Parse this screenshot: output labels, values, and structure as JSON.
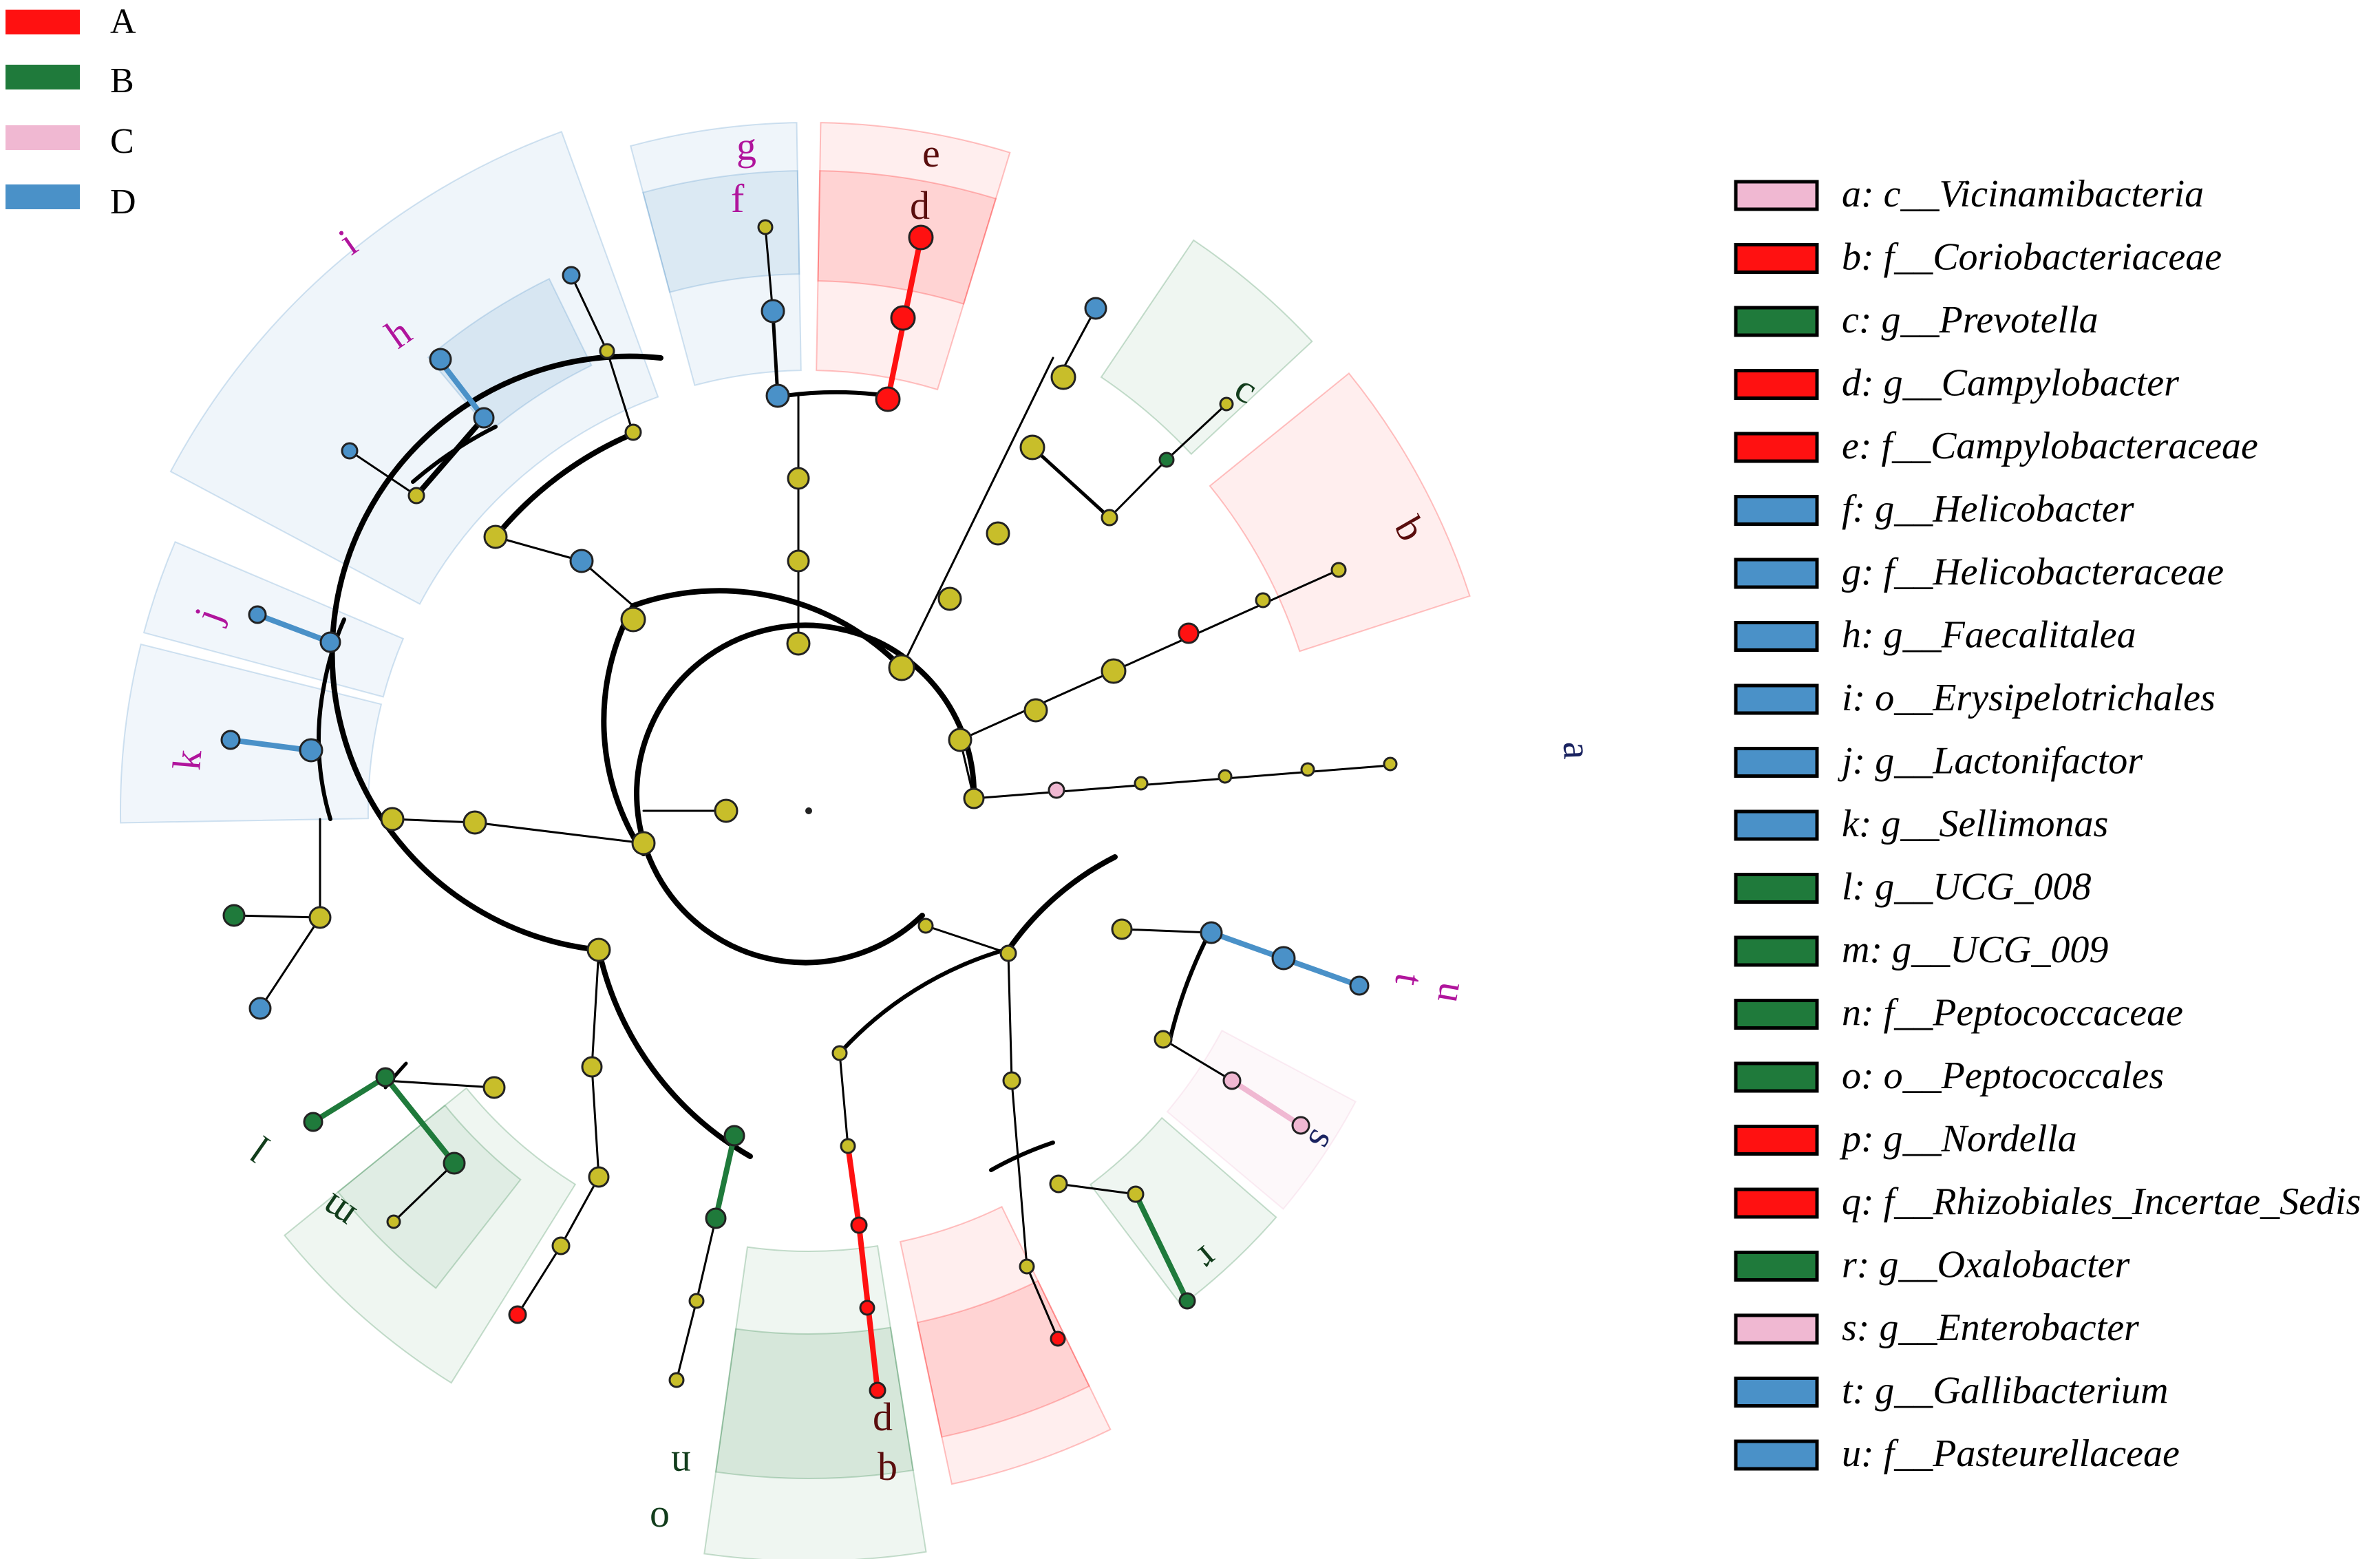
{
  "colors": {
    "A": "#ff1111",
    "B": "#1f7a3b",
    "C": "#f0b8d2",
    "D": "#4a91c8",
    "node_default": "#c8be2a",
    "label_purple": "#b0149c",
    "label_darkred": "#5a0d0d",
    "label_darkgreen": "#123d1c",
    "label_navy": "#1a2360"
  },
  "group_legend": [
    {
      "key": "A",
      "label": "A"
    },
    {
      "key": "B",
      "label": "B"
    },
    {
      "key": "C",
      "label": "C"
    },
    {
      "key": "D",
      "label": "D"
    }
  ],
  "taxa_legend": [
    {
      "id": "a",
      "text": "a: c__Vicinamibacteria",
      "group": "C"
    },
    {
      "id": "b",
      "text": "b: f__Coriobacteriaceae",
      "group": "A"
    },
    {
      "id": "c",
      "text": "c: g__Prevotella",
      "group": "B"
    },
    {
      "id": "d",
      "text": "d: g__Campylobacter",
      "group": "A"
    },
    {
      "id": "e",
      "text": "e: f__Campylobacteraceae",
      "group": "A"
    },
    {
      "id": "f",
      "text": "f: g__Helicobacter",
      "group": "D"
    },
    {
      "id": "g",
      "text": "g: f__Helicobacteraceae",
      "group": "D"
    },
    {
      "id": "h",
      "text": "h: g__Faecalitalea",
      "group": "D"
    },
    {
      "id": "i",
      "text": "i: o__Erysipelotrichales",
      "group": "D"
    },
    {
      "id": "j",
      "text": "j: g__Lactonifactor",
      "group": "D"
    },
    {
      "id": "k",
      "text": "k: g__Sellimonas",
      "group": "D"
    },
    {
      "id": "l",
      "text": "l: g__UCG_008",
      "group": "B"
    },
    {
      "id": "m",
      "text": "m: g__UCG_009",
      "group": "B"
    },
    {
      "id": "n",
      "text": "n: f__Peptococcaceae",
      "group": "B"
    },
    {
      "id": "o",
      "text": "o: o__Peptococcales",
      "group": "B"
    },
    {
      "id": "p",
      "text": "p: g__Nordella",
      "group": "A"
    },
    {
      "id": "q",
      "text": "q: f__Rhizobiales_Incertae_Sedis",
      "group": "A"
    },
    {
      "id": "r",
      "text": "r: g__Oxalobacter",
      "group": "B"
    },
    {
      "id": "s",
      "text": "s: g__Enterobacter",
      "group": "C"
    },
    {
      "id": "t",
      "text": "t: g__Gallibacterium",
      "group": "D"
    },
    {
      "id": "u",
      "text": "u: f__Pasteurellaceae",
      "group": "D"
    }
  ],
  "clade_labels": [
    {
      "id": "g",
      "text": "g",
      "color": "label_purple"
    },
    {
      "id": "f",
      "text": "f",
      "color": "label_purple"
    },
    {
      "id": "e",
      "text": "e",
      "color": "label_darkred"
    },
    {
      "id": "d_top",
      "text": "d",
      "color": "label_darkred"
    },
    {
      "id": "i",
      "text": "i",
      "color": "label_purple"
    },
    {
      "id": "h",
      "text": "h",
      "color": "label_purple"
    },
    {
      "id": "c",
      "text": "c",
      "color": "label_darkgreen"
    },
    {
      "id": "b_top",
      "text": "b",
      "color": "label_darkred"
    },
    {
      "id": "a",
      "text": "a",
      "color": "label_navy"
    },
    {
      "id": "j",
      "text": "j",
      "color": "label_purple"
    },
    {
      "id": "k",
      "text": "k",
      "color": "label_purple"
    },
    {
      "id": "t",
      "text": "t",
      "color": "label_purple"
    },
    {
      "id": "u",
      "text": "u",
      "color": "label_purple"
    },
    {
      "id": "s",
      "text": "s",
      "color": "label_navy"
    },
    {
      "id": "r",
      "text": "r",
      "color": "label_darkgreen"
    },
    {
      "id": "l",
      "text": "l",
      "color": "label_darkgreen"
    },
    {
      "id": "m",
      "text": "m",
      "color": "label_darkgreen"
    },
    {
      "id": "n",
      "text": "n",
      "color": "label_darkgreen"
    },
    {
      "id": "o",
      "text": "o",
      "color": "label_darkgreen"
    },
    {
      "id": "d_bottom",
      "text": "d",
      "color": "label_darkred"
    },
    {
      "id": "b_bottom",
      "text": "b",
      "color": "label_darkred"
    }
  ]
}
